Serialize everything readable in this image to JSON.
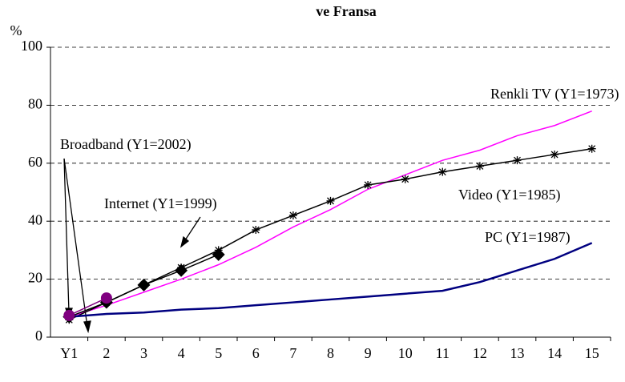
{
  "chart_data": {
    "type": "line",
    "title": "ve Fransa",
    "ylabel": "%",
    "categories": [
      "Y1",
      "2",
      "3",
      "4",
      "5",
      "6",
      "7",
      "8",
      "9",
      "10",
      "11",
      "12",
      "13",
      "14",
      "15"
    ],
    "series": [
      {
        "name": "Renkli TV (Y1=1973)",
        "color": "#ff00ff",
        "marker": "none",
        "values": [
          7,
          11,
          15.5,
          20,
          25,
          31,
          38,
          44,
          51,
          56,
          61,
          64.5,
          69.5,
          73,
          78
        ]
      },
      {
        "name": "Video (Y1=1985)",
        "color": "#000000",
        "marker": "star",
        "values": [
          6,
          12,
          18,
          24,
          30,
          37,
          42,
          47,
          52.5,
          54.5,
          57,
          59,
          61,
          63,
          65
        ]
      },
      {
        "name": "PC (Y1=1987)",
        "color": "#000080",
        "marker": "none",
        "values": [
          7,
          8,
          8.5,
          9.5,
          10,
          11,
          12,
          13,
          14,
          15,
          16,
          19,
          23,
          27,
          32.5
        ]
      },
      {
        "name": "Internet  (Y1=1999)",
        "color": "#000000",
        "marker": "diamond",
        "values": [
          7,
          12,
          18,
          23,
          28.5,
          null,
          null,
          null,
          null,
          null,
          null,
          null,
          null,
          null,
          null
        ]
      },
      {
        "name": "Broadband (Y1=2002)",
        "color": "#800080",
        "marker": "circle",
        "values": [
          7.5,
          13.5,
          null,
          null,
          null,
          null,
          null,
          null,
          null,
          null,
          null,
          null,
          null,
          null,
          null
        ]
      }
    ],
    "ylim": [
      0,
      100
    ],
    "yticks": [
      0,
      20,
      40,
      60,
      80,
      100
    ],
    "grid": true
  }
}
